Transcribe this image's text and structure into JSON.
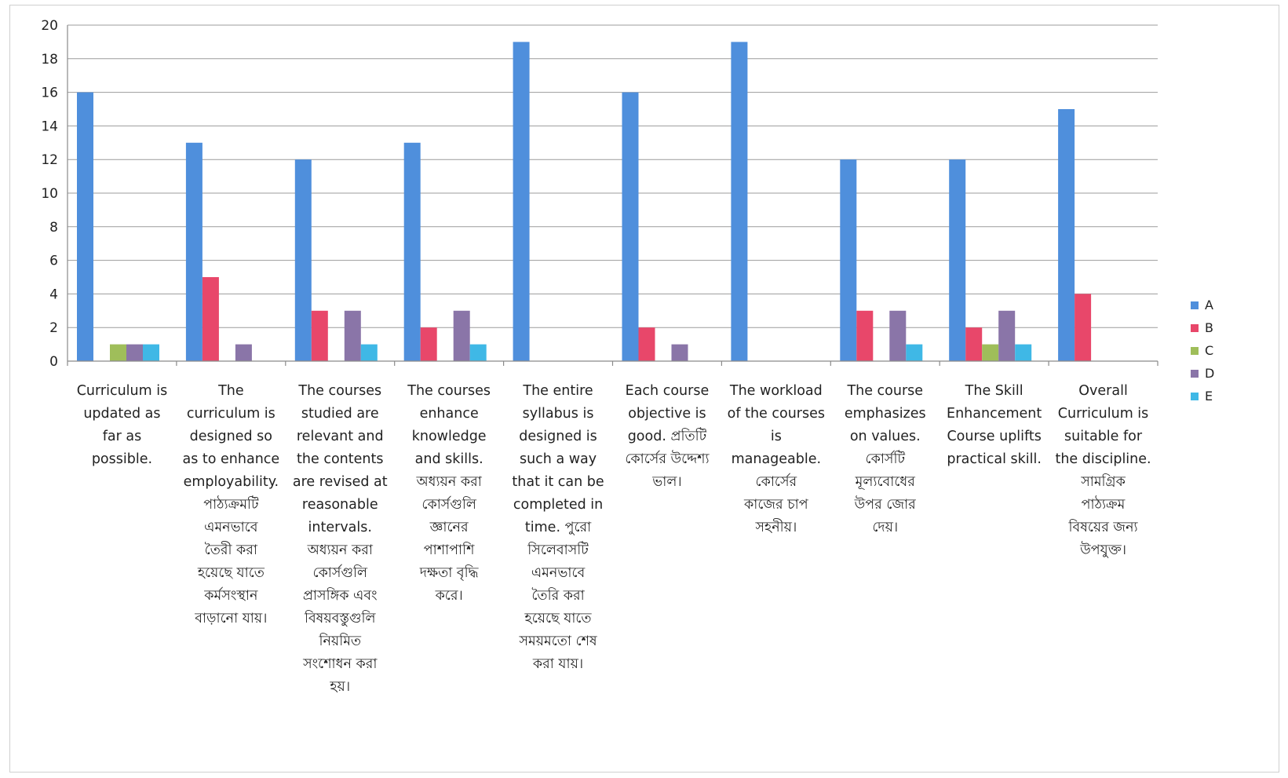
{
  "chart_data": {
    "type": "bar",
    "title": "",
    "xlabel": "",
    "ylabel": "",
    "ylim": [
      0,
      20
    ],
    "yticks": [
      0,
      2,
      4,
      6,
      8,
      10,
      12,
      14,
      16,
      18,
      20
    ],
    "grid": true,
    "legend_position": "right",
    "categories": [
      [
        "Curriculum is",
        "updated as",
        "far as",
        "possible."
      ],
      [
        "The",
        "curriculum is",
        "designed so",
        "as to enhance",
        "employability.",
        "পাঠ্যক্রমটি",
        "এমনভাবে",
        "তৈরী করা",
        "হয়েছে যাতে",
        "কর্মসংস্থান",
        "বাড়ানো যায়।"
      ],
      [
        "The courses",
        "studied are",
        "relevant and",
        "the contents",
        "are revised at",
        "reasonable",
        "intervals.",
        "অধ্যয়ন করা",
        "কোর্সগুলি",
        "প্রাসঙ্গিক এবং",
        "বিষয়বস্তুগুলি",
        "নিয়মিত",
        "সংশোধন করা",
        "হয়।"
      ],
      [
        "The courses",
        "enhance",
        "knowledge",
        "and skills.",
        "অধ্যয়ন করা",
        "কোর্সগুলি",
        "জ্ঞানের",
        "পাশাপাশি",
        "দক্ষতা বৃদ্ধি",
        "করে।"
      ],
      [
        "The entire",
        "syllabus is",
        "designed is",
        "such a way",
        "that it can be",
        "completed in",
        "time. পুরো",
        "সিলেবাসটি",
        "এমনভাবে",
        "তৈরি করা",
        "হয়েছে যাতে",
        "সময়মতো শেষ",
        "করা যায়।"
      ],
      [
        "Each course",
        "objective is",
        "good. প্রতিটি",
        "কোর্সের উদ্দেশ্য",
        "ভাল।"
      ],
      [
        "The workload",
        "of the courses",
        "is",
        "manageable.",
        "কোর্সের",
        "কাজের চাপ",
        "সহনীয়।"
      ],
      [
        "The course",
        "emphasizes",
        "on values.",
        "কোর্সটি",
        "মূল্যবোধের",
        "উপর জোর",
        "দেয়।"
      ],
      [
        "The Skill",
        "Enhancement",
        "Course uplifts",
        "practical skill."
      ],
      [
        "Overall",
        "Curriculum is",
        "suitable for",
        "the discipline.",
        "সামগ্রিক",
        "পাঠ্যক্রম",
        "বিষয়ের জন্য",
        "উপযুক্ত।"
      ]
    ],
    "series": [
      {
        "name": "A",
        "color": "#4f8fdc",
        "values": [
          16,
          13,
          12,
          13,
          19,
          16,
          19,
          12,
          12,
          15
        ]
      },
      {
        "name": "B",
        "color": "#e8476a",
        "values": [
          0,
          5,
          3,
          2,
          0,
          2,
          0,
          3,
          2,
          4
        ]
      },
      {
        "name": "C",
        "color": "#9fbe5a",
        "values": [
          1,
          0,
          0,
          0,
          0,
          0,
          0,
          0,
          1,
          0
        ]
      },
      {
        "name": "D",
        "color": "#8a75a8",
        "values": [
          1,
          1,
          3,
          3,
          0,
          1,
          0,
          3,
          3,
          0
        ]
      },
      {
        "name": "E",
        "color": "#3fb8e6",
        "values": [
          1,
          0,
          1,
          1,
          0,
          0,
          0,
          1,
          1,
          0
        ]
      }
    ]
  }
}
